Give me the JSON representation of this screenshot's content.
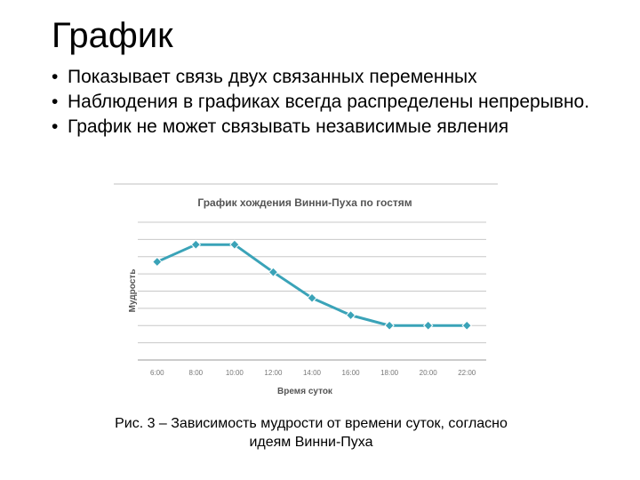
{
  "slide": {
    "title": "График",
    "bullets": [
      "Показывает связь двух связанных переменных",
      "Наблюдения в графиках всегда распределены непрерывно.",
      "График не может связывать независимые явления"
    ],
    "caption_line1": "Рис. 3 – Зависимость мудрости от времени суток, согласно",
    "caption_line2": "идеям Винни-Пуха"
  },
  "chart_data": {
    "type": "line",
    "title": "График хождения Винни-Пуха по гостям",
    "xlabel": "Время суток",
    "ylabel": "Мудрость",
    "categories": [
      "6:00",
      "8:00",
      "10:00",
      "12:00",
      "14:00",
      "16:00",
      "18:00",
      "20:00",
      "22:00"
    ],
    "values": [
      5.7,
      6.7,
      6.7,
      5.1,
      3.6,
      2.6,
      2.0,
      2.0,
      2.0
    ],
    "ylim": [
      0,
      8
    ],
    "grid": true,
    "line_color": "#3aa3b8",
    "marker_color": "#3aa3b8"
  }
}
